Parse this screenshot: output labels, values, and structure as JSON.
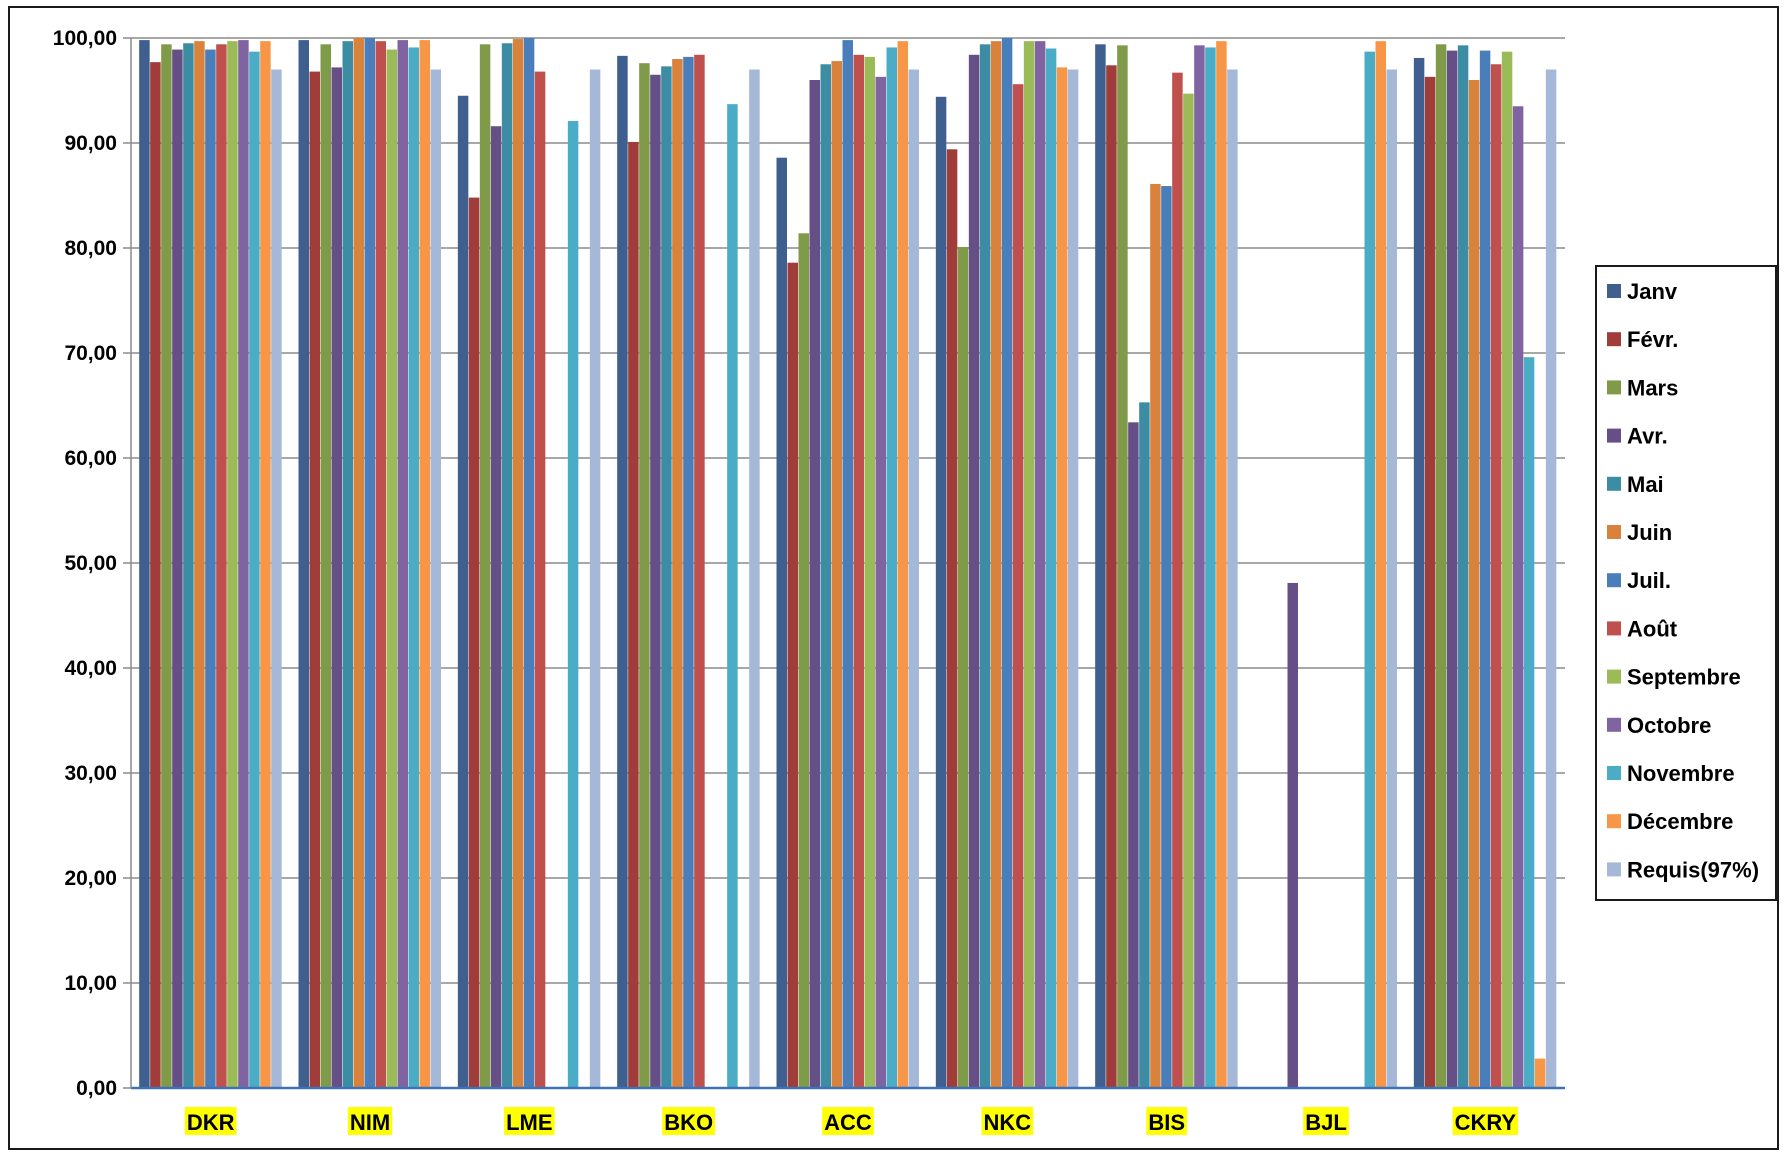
{
  "chart_data": {
    "type": "bar",
    "title": "",
    "xlabel": "",
    "ylabel": "",
    "ylim": [
      0,
      100
    ],
    "yticks": [
      "0,00",
      "10,00",
      "20,00",
      "30,00",
      "40,00",
      "50,00",
      "60,00",
      "70,00",
      "80,00",
      "90,00",
      "100,00"
    ],
    "grid": "horizontal",
    "legend_position": "right",
    "categories": [
      "DKR",
      "NIM",
      "LME",
      "BKO",
      "ACC",
      "NKC",
      "BIS",
      "BJL",
      "CKRY"
    ],
    "category_label_highlight": "#ffff00",
    "series": [
      {
        "name": "Janv",
        "color": "#3f5f8f",
        "values": [
          99.8,
          99.8,
          94.5,
          98.3,
          88.6,
          94.4,
          99.4,
          null,
          98.1
        ]
      },
      {
        "name": "Févr.",
        "color": "#a03c3a",
        "values": [
          97.7,
          96.8,
          84.8,
          90.1,
          78.6,
          89.4,
          97.4,
          null,
          96.3
        ]
      },
      {
        "name": "Mars",
        "color": "#7f9a48",
        "values": [
          99.4,
          99.4,
          99.4,
          97.6,
          81.4,
          80.1,
          99.3,
          null,
          99.4
        ]
      },
      {
        "name": "Avr.",
        "color": "#664f86",
        "values": [
          98.9,
          97.2,
          91.6,
          96.5,
          96.0,
          98.4,
          63.4,
          48.1,
          98.8
        ]
      },
      {
        "name": "Mai",
        "color": "#3c8da3",
        "values": [
          99.5,
          99.7,
          99.5,
          97.3,
          97.5,
          99.4,
          65.3,
          null,
          99.3
        ]
      },
      {
        "name": "Juin",
        "color": "#d9823b",
        "values": [
          99.7,
          100.0,
          99.9,
          98.0,
          97.8,
          99.7,
          86.1,
          null,
          96.0
        ]
      },
      {
        "name": "Juil.",
        "color": "#4a7ebb",
        "values": [
          98.9,
          100.0,
          100.0,
          98.2,
          99.8,
          100.0,
          85.9,
          null,
          98.8
        ]
      },
      {
        "name": "Août",
        "color": "#c0504d",
        "values": [
          99.4,
          99.7,
          96.8,
          98.4,
          98.4,
          95.6,
          96.7,
          null,
          97.5
        ]
      },
      {
        "name": "Septembre",
        "color": "#9bbb59",
        "values": [
          99.7,
          98.9,
          null,
          null,
          98.2,
          99.7,
          94.7,
          null,
          98.7
        ]
      },
      {
        "name": "Octobre",
        "color": "#8064a2",
        "values": [
          99.8,
          99.8,
          null,
          null,
          96.3,
          99.7,
          99.3,
          null,
          93.5
        ]
      },
      {
        "name": "Novembre",
        "color": "#4bacc6",
        "values": [
          98.7,
          99.1,
          92.1,
          93.7,
          99.1,
          99.0,
          99.1,
          98.7,
          69.6
        ]
      },
      {
        "name": "Décembre",
        "color": "#f79646",
        "values": [
          99.7,
          99.8,
          null,
          null,
          99.7,
          97.2,
          99.7,
          99.7,
          2.8
        ]
      },
      {
        "name": "Requis(97%)",
        "color": "#a5b8d8",
        "values": [
          97,
          97,
          97,
          97,
          97,
          97,
          97,
          97,
          97
        ]
      }
    ]
  }
}
